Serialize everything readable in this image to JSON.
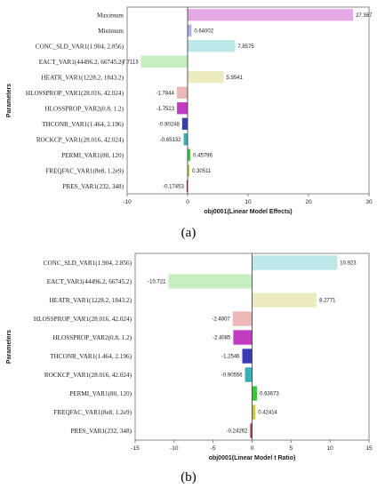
{
  "chart_data": [
    {
      "type": "bar",
      "orientation": "horizontal",
      "caption": "(a)",
      "xlabel": "obj0001(Linear Model Effects)",
      "ylabel": "Parameters",
      "xlim": [
        -10,
        30
      ],
      "xticks": [
        "-10",
        "0",
        "10",
        "20",
        "30"
      ],
      "grid": false,
      "categories": [
        "Maximum",
        "Minimum",
        "CONC_SLD_VAR1(1.904, 2.856)",
        "EACT_VAR1(44496.2, 66745.2)",
        "HEATR_VAR1(1228.2, 1843.2)",
        "HLOSSPROP_VAR1(28.016, 42.024)",
        "HLOSSPROP_VAR2(0.8, 1.2)",
        "THCONR_VAR1(1.464, 2.196)",
        "ROCKCP_VAR1(28.016, 42.024)",
        "PERMI_VAR1(80, 120)",
        "FREQFAC_VAR1(8e8, 1.2e9)",
        "PRES_VAR1(232, 348)"
      ],
      "values": [
        27.367,
        0.64002,
        7.8575,
        -7.7113,
        5.9541,
        -1.7844,
        -1.7523,
        -0.90248,
        -0.65132,
        0.45796,
        0.30511,
        -0.17453
      ],
      "value_labels": [
        "27.367",
        "0.64002",
        "7.8575",
        "-7.7113",
        "5.9541",
        "-1.7844",
        "-1.7523",
        "-0.90248",
        "-0.65132",
        "0.45796",
        "0.30511",
        "-0.17453"
      ],
      "colors": [
        "#e5a9e5",
        "#aab2ea",
        "#bde8ea",
        "#c6eec0",
        "#ebebbf",
        "#edb8b8",
        "#c33bc3",
        "#3b3bb5",
        "#3aaeb8",
        "#3cc83c",
        "#c8c83c",
        "#b83a3a"
      ]
    },
    {
      "type": "bar",
      "orientation": "horizontal",
      "caption": "(b)",
      "xlabel": "obj0001(Linear Model t Ratio)",
      "ylabel": "Parameters",
      "xlim": [
        -15,
        15
      ],
      "xticks": [
        "-15",
        "-10",
        "-5",
        "0",
        "5",
        "10",
        "15"
      ],
      "grid": false,
      "categories": [
        "CONC_SLD_VAR1(1.904, 2.856)",
        "EACT_VAR1(44496.2, 66745.2)",
        "HEATR_VAR1(1228.2, 1843.2)",
        "HLOSSPROP_VAR1(28.016, 42.024)",
        "HLOSSPROP_VAR2(0.8, 1.2)",
        "THCONR_VAR1(1.464, 2.196)",
        "ROCKCP_VAR1(28.016, 42.024)",
        "PERMI_VAR1(80, 120)",
        "FREQFAC_VAR1(8e8, 1.2e9)",
        "PRES_VAR1(232, 348)"
      ],
      "values": [
        10.923,
        -10.721,
        8.2771,
        -2.4807,
        -2.4085,
        -1.2546,
        -0.90556,
        0.63673,
        0.42414,
        -0.24262
      ],
      "value_labels": [
        "10.923",
        "-10.721",
        "8.2771",
        "-2.4807",
        "-2.4085",
        "-1.2546",
        "-0.90556",
        "0.63673",
        "0.42414",
        "-0.24262"
      ],
      "colors": [
        "#bde8ea",
        "#c6eec0",
        "#ebebbf",
        "#edb8b8",
        "#c33bc3",
        "#3b3bb5",
        "#3aaeb8",
        "#3cc83c",
        "#c8c83c",
        "#b83a3a"
      ]
    }
  ]
}
